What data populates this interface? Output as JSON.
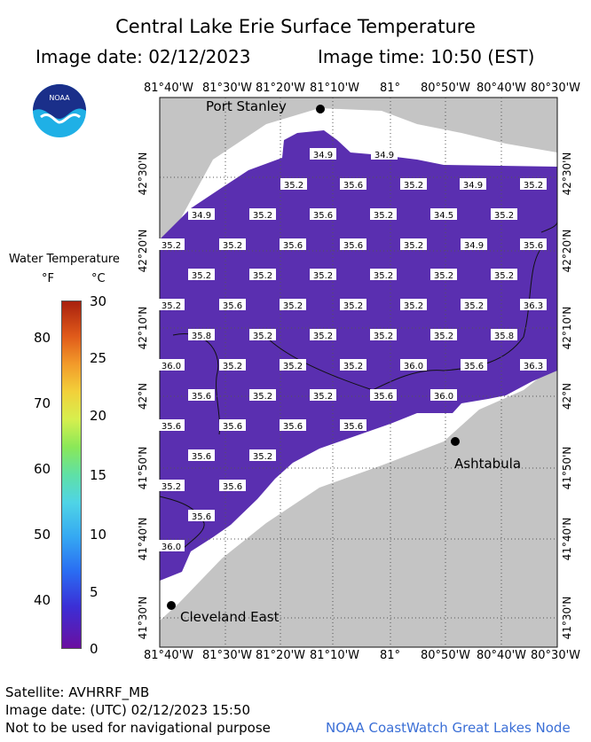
{
  "header": {
    "title": "Central Lake Erie Surface Temperature",
    "image_date": "Image date: 02/12/2023",
    "image_time": "Image time: 10:50 (EST)"
  },
  "logo": {
    "text": "NOAA",
    "icon": "noaa-logo"
  },
  "legend": {
    "title": "Water Temperature",
    "unit_f": "°F",
    "unit_c": "°C",
    "f_ticks": [
      "80",
      "70",
      "60",
      "50",
      "40"
    ],
    "c_ticks": [
      "30",
      "25",
      "20",
      "15",
      "10",
      "5",
      "0"
    ]
  },
  "map": {
    "lon_labels": [
      "81°40'W",
      "81°30'W",
      "81°20'W",
      "81°10'W",
      "81°",
      "80°50'W",
      "80°40'W",
      "80°30'W"
    ],
    "lat_labels": [
      "42°30'N",
      "42°20'N",
      "42°10'N",
      "42°N",
      "41°50'N",
      "41°40'N",
      "41°30'N"
    ],
    "cities": [
      "Port Stanley",
      "Ashtabula",
      "Cleveland East"
    ],
    "temperatures": [
      [
        "34.9",
        "34.9"
      ],
      [
        "35.2",
        "35.6",
        "35.2",
        "34.9",
        "35.2"
      ],
      [
        "34.9",
        "35.2",
        "35.6",
        "35.2",
        "34.5",
        "35.2"
      ],
      [
        "35.2",
        "35.2",
        "35.6",
        "35.6",
        "35.2",
        "34.9",
        "35.6"
      ],
      [
        "35.2",
        "35.2",
        "35.2",
        "35.2",
        "35.2",
        "35.2"
      ],
      [
        "35.2",
        "35.6",
        "35.2",
        "35.2",
        "35.2",
        "35.2",
        "36.3"
      ],
      [
        "35.8",
        "35.2",
        "35.2",
        "35.2",
        "35.2",
        "35.8"
      ],
      [
        "36.0",
        "35.2",
        "35.2",
        "35.2",
        "36.0",
        "35.6",
        "36.3"
      ],
      [
        "35.6",
        "35.2",
        "35.2",
        "35.6",
        "36.0"
      ],
      [
        "35.6",
        "35.6",
        "35.6",
        "35.6"
      ],
      [
        "35.6",
        "35.2"
      ],
      [
        "35.2",
        "35.6"
      ],
      [
        "35.6"
      ],
      [
        "36.0"
      ]
    ],
    "water_color": "#5a2fb0",
    "land_color": "#c4c4c4"
  },
  "footer": {
    "satellite": "Satellite: AVHRRF_MB",
    "utc": "Image date: (UTC) 02/12/2023  15:50",
    "disclaimer": "Not to be used for navigational purpose",
    "credit": "NOAA CoastWatch Great Lakes Node"
  }
}
